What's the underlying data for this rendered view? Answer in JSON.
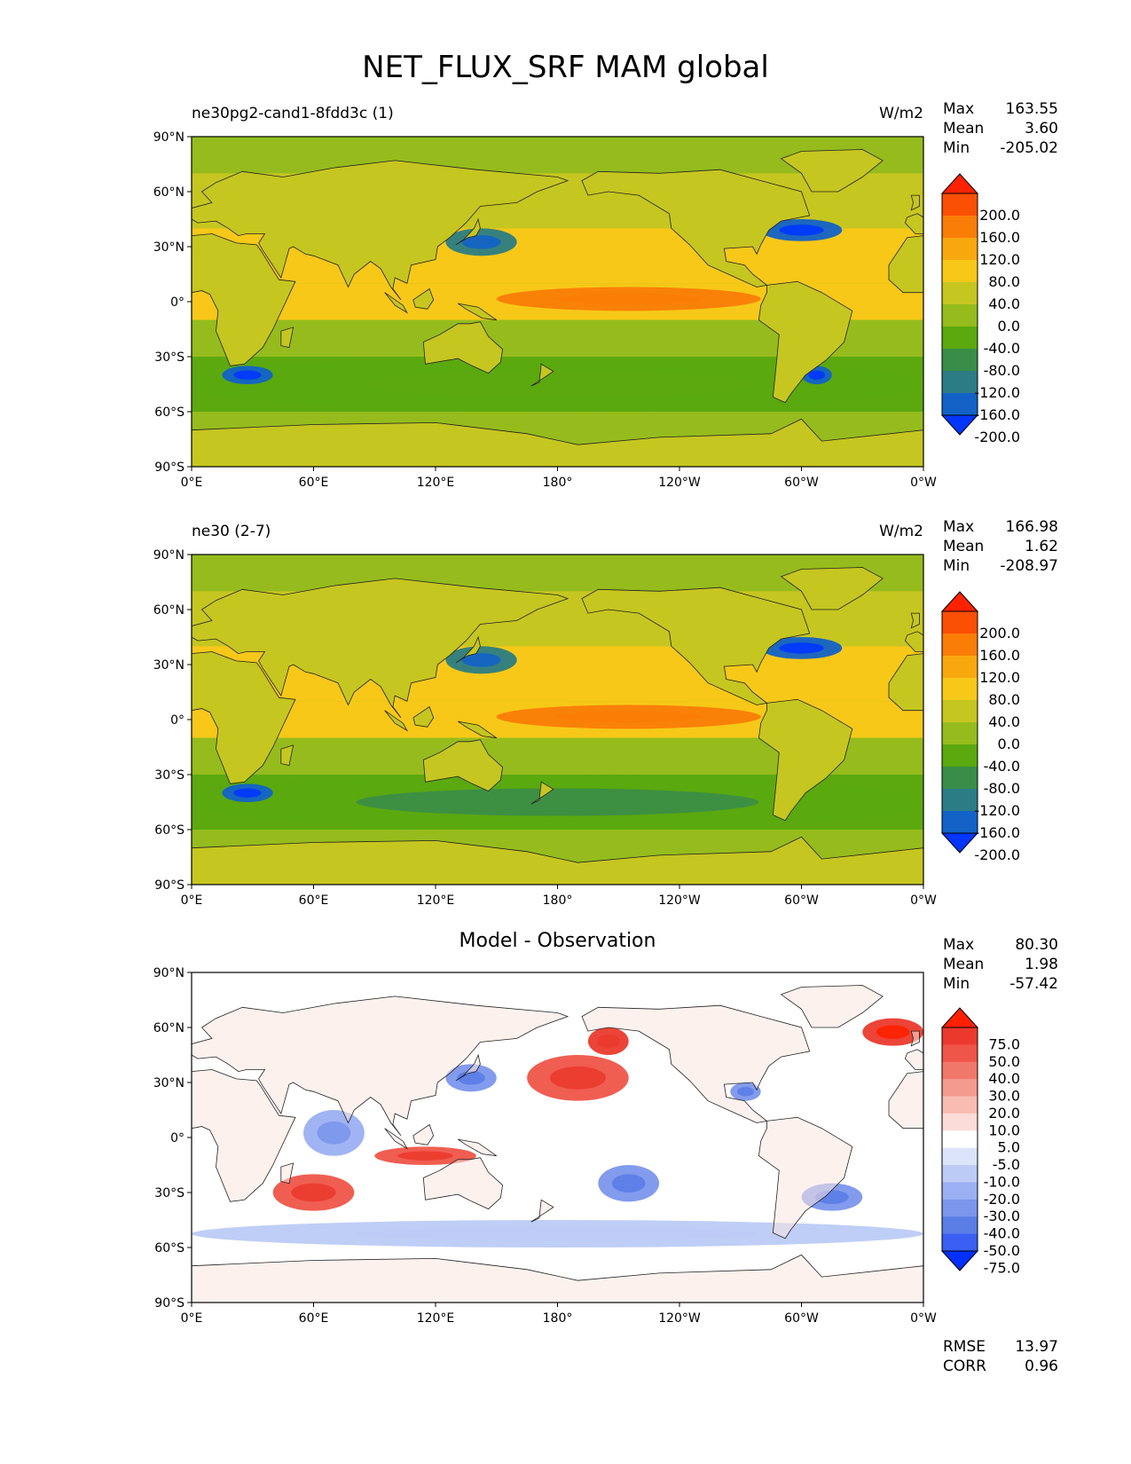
{
  "figure_title": "NET_FLUX_SRF MAM global",
  "x_ticks": [
    "0°E",
    "60°E",
    "120°E",
    "180°",
    "120°W",
    "60°W",
    "0°W"
  ],
  "y_ticks": [
    "90°N",
    "60°N",
    "30°N",
    "0°",
    "30°S",
    "60°S",
    "90°S"
  ],
  "colors": {
    "field": [
      "#0036ff",
      "#1262c8",
      "#2b7d83",
      "#3a8d48",
      "#5ba90f",
      "#95bc1c",
      "#c6c620",
      "#f7c818",
      "#f9a70f",
      "#fa7d07",
      "#fb4f04",
      "#ff2200"
    ],
    "diff": [
      "#0030ff",
      "#3a5ff2",
      "#5a7de6",
      "#7b96ec",
      "#9bb0f2",
      "#bccbf6",
      "#dce4fa",
      "#ffffff",
      "#fbdcd7",
      "#f8bcb3",
      "#f59a8f",
      "#f2776b",
      "#ef5548",
      "#eb3a2d",
      "#ff2000"
    ],
    "land_field": "#c6c620",
    "ocean_field": "#95bc1c",
    "land_diff": "#fbe5e0",
    "ocean_diff": "#ffffff"
  },
  "panels": [
    {
      "title": "ne30pg2-cand1-8fdd3c (1)",
      "units": "W/m2",
      "stats": {
        "max_label": "Max",
        "max": "163.55",
        "mean_label": "Mean",
        "mean": "3.60",
        "min_label": "Min",
        "min": "-205.02"
      },
      "colorbar_labels": [
        "200.0",
        "160.0",
        "120.0",
        "80.0",
        "40.0",
        "0.0",
        "-40.0",
        "-80.0",
        "-120.0",
        "-160.0",
        "-200.0"
      ]
    },
    {
      "title": "ne30 (2-7)",
      "units": "W/m2",
      "stats": {
        "max_label": "Max",
        "max": "166.98",
        "mean_label": "Mean",
        "mean": "1.62",
        "min_label": "Min",
        "min": "-208.97"
      },
      "colorbar_labels": [
        "200.0",
        "160.0",
        "120.0",
        "80.0",
        "40.0",
        "0.0",
        "-40.0",
        "-80.0",
        "-120.0",
        "-160.0",
        "-200.0"
      ]
    },
    {
      "title": "Model - Observation",
      "units": "",
      "stats": {
        "max_label": "Max",
        "max": "80.30",
        "mean_label": "Mean",
        "mean": "1.98",
        "min_label": "Min",
        "min": "-57.42"
      },
      "colorbar_labels": [
        "75.0",
        "50.0",
        "40.0",
        "30.0",
        "20.0",
        "10.0",
        "5.0",
        "-5.0",
        "-10.0",
        "-20.0",
        "-30.0",
        "-40.0",
        "-50.0",
        "-75.0"
      ],
      "rmse_label": "RMSE",
      "rmse": "13.97",
      "corr_label": "CORR",
      "corr": "0.96"
    }
  ],
  "chart_data": [
    {
      "type": "heatmap",
      "title": "ne30pg2-cand1-8fdd3c (1)",
      "units": "W/m2",
      "x_range_deg_east": [
        0,
        360
      ],
      "y_range_deg_lat": [
        -90,
        90
      ],
      "levels": [
        -200,
        -160,
        -120,
        -80,
        -40,
        0,
        40,
        80,
        120,
        160,
        200
      ],
      "max": 163.55,
      "mean": 3.6,
      "min": -205.02,
      "features": [
        {
          "name": "equatorial Pacific warm band",
          "lon": [
            150,
            280
          ],
          "lat": [
            -5,
            8
          ],
          "value": 120
        },
        {
          "name": "Kuroshio",
          "lon": [
            125,
            160
          ],
          "lat": [
            25,
            40
          ],
          "value": -160
        },
        {
          "name": "Gulf Stream",
          "lon": [
            280,
            320
          ],
          "lat": [
            33,
            45
          ],
          "value": -180
        },
        {
          "name": "Southern Ocean",
          "lon": [
            0,
            360
          ],
          "lat": [
            -60,
            -30
          ],
          "value": -60
        },
        {
          "name": "Agulhas",
          "lon": [
            15,
            40
          ],
          "lat": [
            -45,
            -35
          ],
          "value": -180
        },
        {
          "name": "Brazil-Malvinas",
          "lon": [
            300,
            315
          ],
          "lat": [
            -45,
            -35
          ],
          "value": -180
        }
      ]
    },
    {
      "type": "heatmap",
      "title": "ne30 (2-7)",
      "units": "W/m2",
      "x_range_deg_east": [
        0,
        360
      ],
      "y_range_deg_lat": [
        -90,
        90
      ],
      "levels": [
        -200,
        -160,
        -120,
        -80,
        -40,
        0,
        40,
        80,
        120,
        160,
        200
      ],
      "max": 166.98,
      "mean": 1.62,
      "min": -208.97,
      "features": [
        {
          "name": "equatorial Pacific warm band",
          "lon": [
            150,
            280
          ],
          "lat": [
            -5,
            8
          ],
          "value": 120
        },
        {
          "name": "Kuroshio",
          "lon": [
            125,
            160
          ],
          "lat": [
            25,
            40
          ],
          "value": -160
        },
        {
          "name": "Gulf Stream",
          "lon": [
            280,
            320
          ],
          "lat": [
            33,
            45
          ],
          "value": -190
        },
        {
          "name": "Southern Ocean",
          "lon": [
            0,
            360
          ],
          "lat": [
            -60,
            -30
          ],
          "value": -70
        },
        {
          "name": "Agulhas",
          "lon": [
            15,
            40
          ],
          "lat": [
            -45,
            -35
          ],
          "value": -180
        }
      ]
    },
    {
      "type": "heatmap",
      "title": "Model - Observation",
      "units": "W/m2",
      "x_range_deg_east": [
        0,
        360
      ],
      "y_range_deg_lat": [
        -90,
        90
      ],
      "levels": [
        -75,
        -50,
        -40,
        -30,
        -20,
        -10,
        -5,
        5,
        10,
        20,
        30,
        40,
        50,
        75
      ],
      "max": 80.3,
      "mean": 1.98,
      "min": -57.42,
      "rmse": 13.97,
      "corr": 0.96,
      "features": [
        {
          "name": "south Indian Ocean positive",
          "lon": [
            40,
            80
          ],
          "lat": [
            -40,
            -20
          ],
          "value": 40
        },
        {
          "name": "north Pacific positive",
          "lon": [
            165,
            215
          ],
          "lat": [
            20,
            45
          ],
          "value": 40
        },
        {
          "name": "Gulf of Alaska positive",
          "lon": [
            195,
            215
          ],
          "lat": [
            45,
            60
          ],
          "value": 50
        },
        {
          "name": "north Atlantic positive",
          "lon": [
            330,
            360
          ],
          "lat": [
            50,
            65
          ],
          "value": 60
        },
        {
          "name": "maritime continent positive",
          "lon": [
            90,
            140
          ],
          "lat": [
            -15,
            -5
          ],
          "value": 40
        },
        {
          "name": "western Indian Ocean negative",
          "lon": [
            55,
            85
          ],
          "lat": [
            -10,
            15
          ],
          "value": -30
        },
        {
          "name": "Kuroshio negative",
          "lon": [
            125,
            150
          ],
          "lat": [
            25,
            40
          ],
          "value": -40
        },
        {
          "name": "Gulf of Mexico negative",
          "lon": [
            265,
            280
          ],
          "lat": [
            20,
            30
          ],
          "value": -40
        },
        {
          "name": "South Pacific negative",
          "lon": [
            200,
            230
          ],
          "lat": [
            -35,
            -15
          ],
          "value": -35
        },
        {
          "name": "South Atlantic negative",
          "lon": [
            300,
            330
          ],
          "lat": [
            -40,
            -25
          ],
          "value": -40
        },
        {
          "name": "Southern Ocean negative band",
          "lon": [
            0,
            360
          ],
          "lat": [
            -60,
            -45
          ],
          "value": -15
        }
      ]
    }
  ]
}
